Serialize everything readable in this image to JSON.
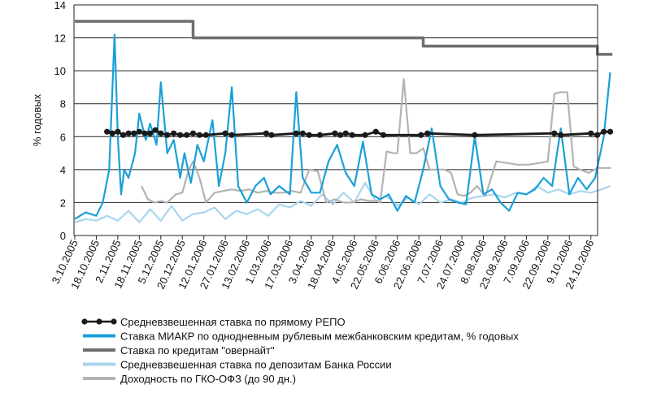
{
  "chart_data": {
    "type": "line",
    "title": "",
    "xlabel": "",
    "ylabel": "% годовых",
    "ylim": [
      0,
      14
    ],
    "yticks": [
      0,
      2,
      4,
      6,
      8,
      10,
      12,
      14
    ],
    "grid": true,
    "legend_position": "bottom",
    "x_labels": [
      "3.10.2005",
      "18.10.2005",
      "2.11.2005",
      "18.11.2005",
      "5.12.2005",
      "20.12.2005",
      "12.01.2006",
      "27.01.2006",
      "13.02.2006",
      "1.03.2006",
      "17.03.2006",
      "3.04.2006",
      "18.04.2006",
      "4.05.2006",
      "22.05.2006",
      "6.06.2006",
      "22.06.2006",
      "7.07.2006",
      "24.07.2006",
      "8.08.2006",
      "23.08.2006",
      "7.09.2006",
      "22.09.2006",
      "9.10.2006",
      "24.10.2006"
    ],
    "series": [
      {
        "name": "Средневзвешенная ставка по прямому РЕПО",
        "color": "#1a1a1a",
        "style": "line-dots",
        "x": [
          1.5,
          1.75,
          2.0,
          2.25,
          2.5,
          2.75,
          3.0,
          3.25,
          3.5,
          3.75,
          4.0,
          4.3,
          4.6,
          4.9,
          5.2,
          5.5,
          5.8,
          6.1,
          7.0,
          7.3,
          8.9,
          9.15,
          10.3,
          10.6,
          10.9,
          11.4,
          12.1,
          12.35,
          12.6,
          12.9,
          13.5,
          14.0,
          14.35,
          16.1,
          16.4,
          18.6,
          22.3,
          22.6,
          24.0,
          24.3,
          24.6,
          24.9
        ],
        "values": [
          6.3,
          6.2,
          6.3,
          6.1,
          6.2,
          6.2,
          6.3,
          6.2,
          6.2,
          6.4,
          6.2,
          6.1,
          6.2,
          6.1,
          6.1,
          6.2,
          6.1,
          6.1,
          6.2,
          6.1,
          6.2,
          6.1,
          6.2,
          6.2,
          6.1,
          6.1,
          6.2,
          6.1,
          6.2,
          6.1,
          6.1,
          6.3,
          6.1,
          6.1,
          6.2,
          6.1,
          6.2,
          6.1,
          6.2,
          6.1,
          6.3,
          6.3
        ]
      },
      {
        "name": "Ставка МИАКР по однодневным рублевым межбанковским кредитам, % годовых",
        "color": "#1aa0d8",
        "style": "line",
        "x": [
          0,
          0.5,
          1.0,
          1.3,
          1.6,
          1.85,
          2.0,
          2.15,
          2.3,
          2.5,
          2.8,
          3.0,
          3.3,
          3.5,
          3.8,
          4.0,
          4.3,
          4.6,
          4.9,
          5.1,
          5.4,
          5.7,
          6.0,
          6.4,
          6.7,
          7.0,
          7.3,
          7.6,
          8.0,
          8.4,
          8.8,
          9.1,
          9.5,
          10.0,
          10.3,
          10.6,
          11.0,
          11.4,
          11.8,
          12.2,
          12.6,
          13.0,
          13.4,
          13.8,
          14.2,
          14.6,
          15.0,
          15.4,
          15.8,
          16.2,
          16.6,
          17.0,
          17.4,
          17.8,
          18.2,
          18.6,
          19.0,
          19.4,
          19.8,
          20.2,
          20.6,
          21.0,
          21.4,
          21.8,
          22.2,
          22.6,
          23.0,
          23.4,
          23.8,
          24.2,
          24.6,
          24.9
        ],
        "values": [
          1.0,
          1.4,
          1.2,
          2.0,
          4.0,
          12.2,
          6.0,
          2.5,
          4.0,
          3.5,
          5.0,
          7.4,
          5.8,
          6.8,
          5.5,
          9.3,
          5.0,
          5.8,
          3.5,
          5.0,
          3.2,
          5.5,
          4.5,
          7.0,
          3.0,
          5.0,
          9.0,
          3.0,
          2.0,
          3.0,
          3.5,
          2.5,
          3.0,
          2.5,
          8.7,
          3.5,
          2.6,
          2.6,
          4.5,
          5.5,
          3.8,
          3.0,
          5.7,
          2.5,
          2.2,
          2.5,
          1.5,
          2.4,
          2.0,
          4.0,
          6.5,
          3.0,
          2.2,
          2.0,
          1.9,
          6.0,
          2.5,
          2.8,
          2.0,
          1.5,
          2.6,
          2.5,
          2.8,
          3.5,
          3.0,
          6.5,
          2.5,
          3.5,
          2.8,
          3.5,
          6.0,
          9.9
        ]
      },
      {
        "name": "Ставка по кредитам \"овернайт\"",
        "color": "#6e6e6e",
        "style": "step",
        "x": [
          0,
          5.5,
          5.5,
          16.2,
          16.2,
          24.3,
          24.3,
          25.0
        ],
        "values": [
          13.0,
          13.0,
          12.0,
          12.0,
          11.5,
          11.5,
          11.0,
          11.0
        ]
      },
      {
        "name": "Средневзвешенная ставка по депозитам Банка России",
        "color": "#a9d6ee",
        "style": "line",
        "x": [
          0,
          0.5,
          1.0,
          1.5,
          2.0,
          2.5,
          3.0,
          3.5,
          4.0,
          4.5,
          5.0,
          5.5,
          6.0,
          6.5,
          7.0,
          7.5,
          8.0,
          8.5,
          9.0,
          9.5,
          10.0,
          10.5,
          11.0,
          11.5,
          12.0,
          12.5,
          13.0,
          13.5,
          14.0,
          14.5,
          15.0,
          15.5,
          16.0,
          16.5,
          17.0,
          17.5,
          18.0,
          18.5,
          19.0,
          19.5,
          20.0,
          20.5,
          21.0,
          21.5,
          22.0,
          22.5,
          23.0,
          23.5,
          24.0,
          24.5,
          24.9
        ],
        "values": [
          0.8,
          1.0,
          0.9,
          1.2,
          0.9,
          1.5,
          0.8,
          1.6,
          0.9,
          1.8,
          0.9,
          1.3,
          1.4,
          1.7,
          1.0,
          1.5,
          1.3,
          1.6,
          1.2,
          1.9,
          1.7,
          2.1,
          1.8,
          2.5,
          1.9,
          2.6,
          2.0,
          3.2,
          2.1,
          2.4,
          1.8,
          2.3,
          1.9,
          2.5,
          2.0,
          2.2,
          2.0,
          2.3,
          2.4,
          2.5,
          2.3,
          2.6,
          2.5,
          3.0,
          2.6,
          2.8,
          2.5,
          2.7,
          2.6,
          2.8,
          3.0
        ]
      },
      {
        "name": "Доходность по ГКО-ОФЗ (до 90 дн.)",
        "color": "#b3b3b3",
        "style": "line",
        "x": [
          3.1,
          3.4,
          3.7,
          4.0,
          4.3,
          4.7,
          5.0,
          5.3,
          5.5,
          5.8,
          6.1,
          6.5,
          6.9,
          7.3,
          7.7,
          8.1,
          8.5,
          8.9,
          9.3,
          9.7,
          10.1,
          10.5,
          10.9,
          11.3,
          11.7,
          12.1,
          12.5,
          12.9,
          13.3,
          13.7,
          14.0,
          14.2,
          14.5,
          14.8,
          15.0,
          15.3,
          15.6,
          15.9,
          16.2,
          16.5,
          16.8,
          17.2,
          17.5,
          17.8,
          18.1,
          18.4,
          18.7,
          19.1,
          19.6,
          20.1,
          20.6,
          21.1,
          21.6,
          22.0,
          22.3,
          22.6,
          22.9,
          23.2,
          23.5,
          23.9,
          24.3,
          24.7,
          24.95
        ],
        "values": [
          3.0,
          2.2,
          2.0,
          2.1,
          2.0,
          2.5,
          2.6,
          4.0,
          4.5,
          3.5,
          2.0,
          2.6,
          2.7,
          2.8,
          2.7,
          2.8,
          2.6,
          2.7,
          2.6,
          2.6,
          2.7,
          2.6,
          4.0,
          3.9,
          2.0,
          2.2,
          2.0,
          2.0,
          2.2,
          2.1,
          2.1,
          2.0,
          5.1,
          5.0,
          5.0,
          9.5,
          5.0,
          5.0,
          5.3,
          4.0,
          4.0,
          4.0,
          3.8,
          2.5,
          2.4,
          2.6,
          3.0,
          2.4,
          4.5,
          4.4,
          4.3,
          4.3,
          4.4,
          4.5,
          8.6,
          8.7,
          8.7,
          4.2,
          4.0,
          3.8,
          4.1,
          4.1,
          4.1
        ]
      }
    ]
  }
}
